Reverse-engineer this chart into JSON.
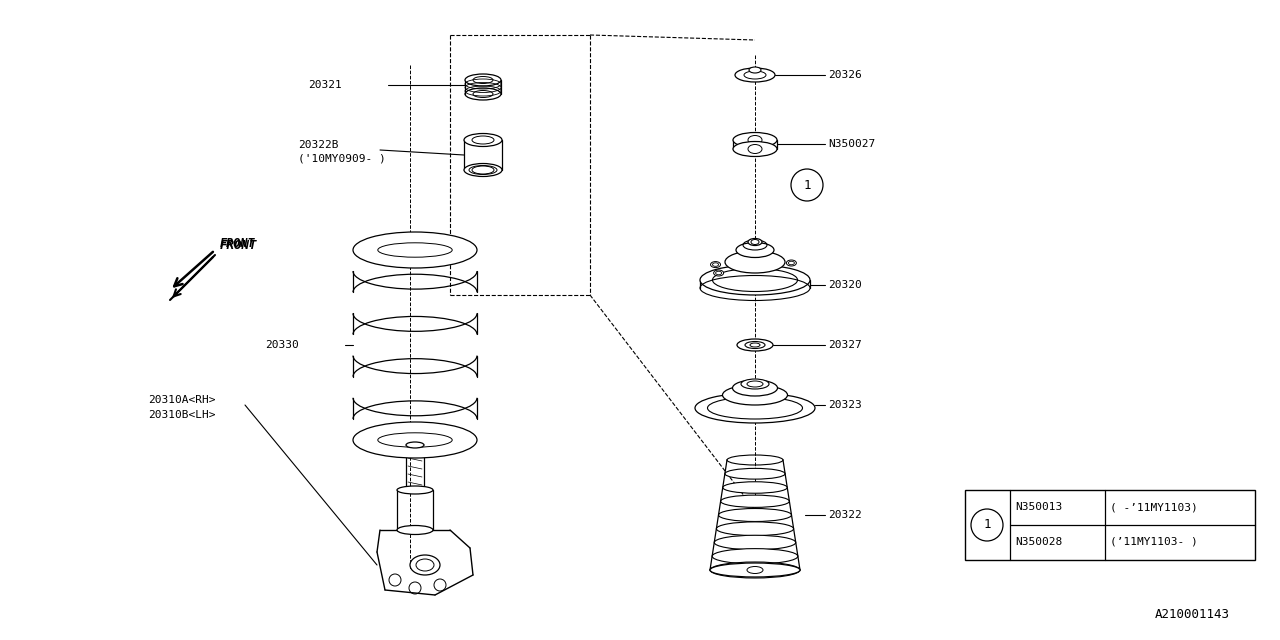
{
  "bg_color": "#ffffff",
  "line_color": "#000000",
  "fig_width": 12.8,
  "fig_height": 6.4,
  "watermark": "A210001143",
  "legend_rows": [
    [
      "N350013",
      "( -’11MY1103)"
    ],
    [
      "N350028",
      "(’11MY1103- )"
    ]
  ],
  "font_size": 8.0,
  "font_mono": "DejaVu Sans Mono"
}
